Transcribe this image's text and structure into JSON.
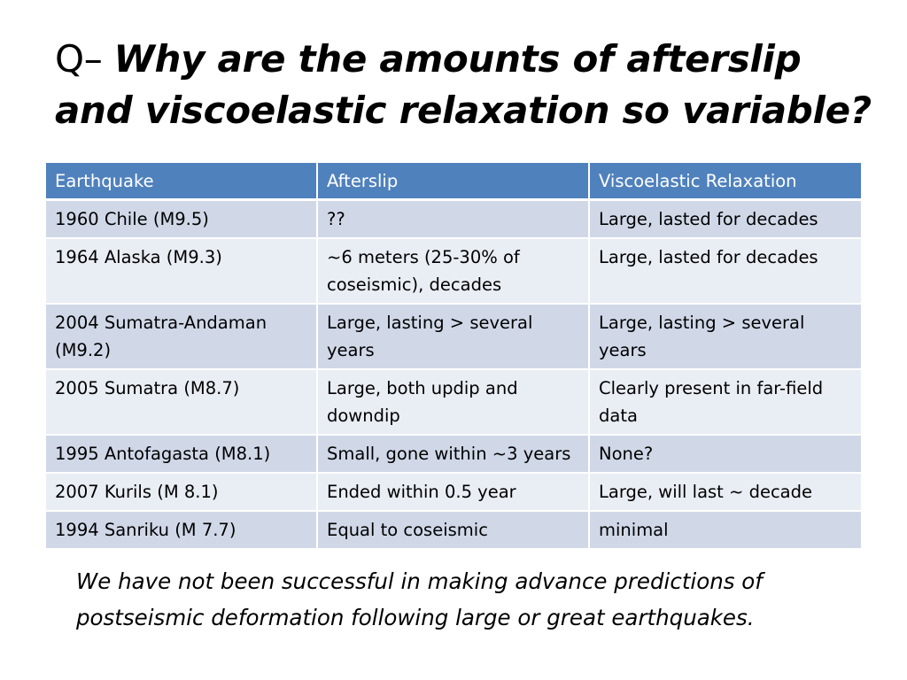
{
  "title": {
    "prefix": "Q–",
    "main": "Why are the amounts of afterslip and viscoelastic relaxation so variable?"
  },
  "table": {
    "headers": [
      "Earthquake",
      "Afterslip",
      "Viscoelastic Relaxation"
    ],
    "rows": [
      [
        "1960 Chile (M9.5)",
        "??",
        "Large, lasted for decades"
      ],
      [
        "1964 Alaska (M9.3)",
        "~6 meters (25-30% of coseismic), decades",
        "Large, lasted for decades"
      ],
      [
        "2004 Sumatra-Andaman (M9.2)",
        "Large, lasting > several years",
        "Large, lasting > several years"
      ],
      [
        "2005 Sumatra (M8.7)",
        "Large, both updip and downdip",
        "Clearly present in far-field data"
      ],
      [
        "1995 Antofagasta (M8.1)",
        "Small, gone within ~3 years",
        "None?"
      ],
      [
        "2007 Kurils (M 8.1)",
        "Ended within 0.5 year",
        "Large, will last ~ decade"
      ],
      [
        "1994 Sanriku (M 7.7)",
        "Equal to coseismic",
        "minimal"
      ]
    ],
    "colors": {
      "header_bg": "#4f81bd",
      "row_odd_bg": "#d0d8e8",
      "row_even_bg": "#e9edf4"
    }
  },
  "footer": {
    "text": "We have not been successful in making advance predictions of postseismic deformation following large or great earthquakes."
  }
}
